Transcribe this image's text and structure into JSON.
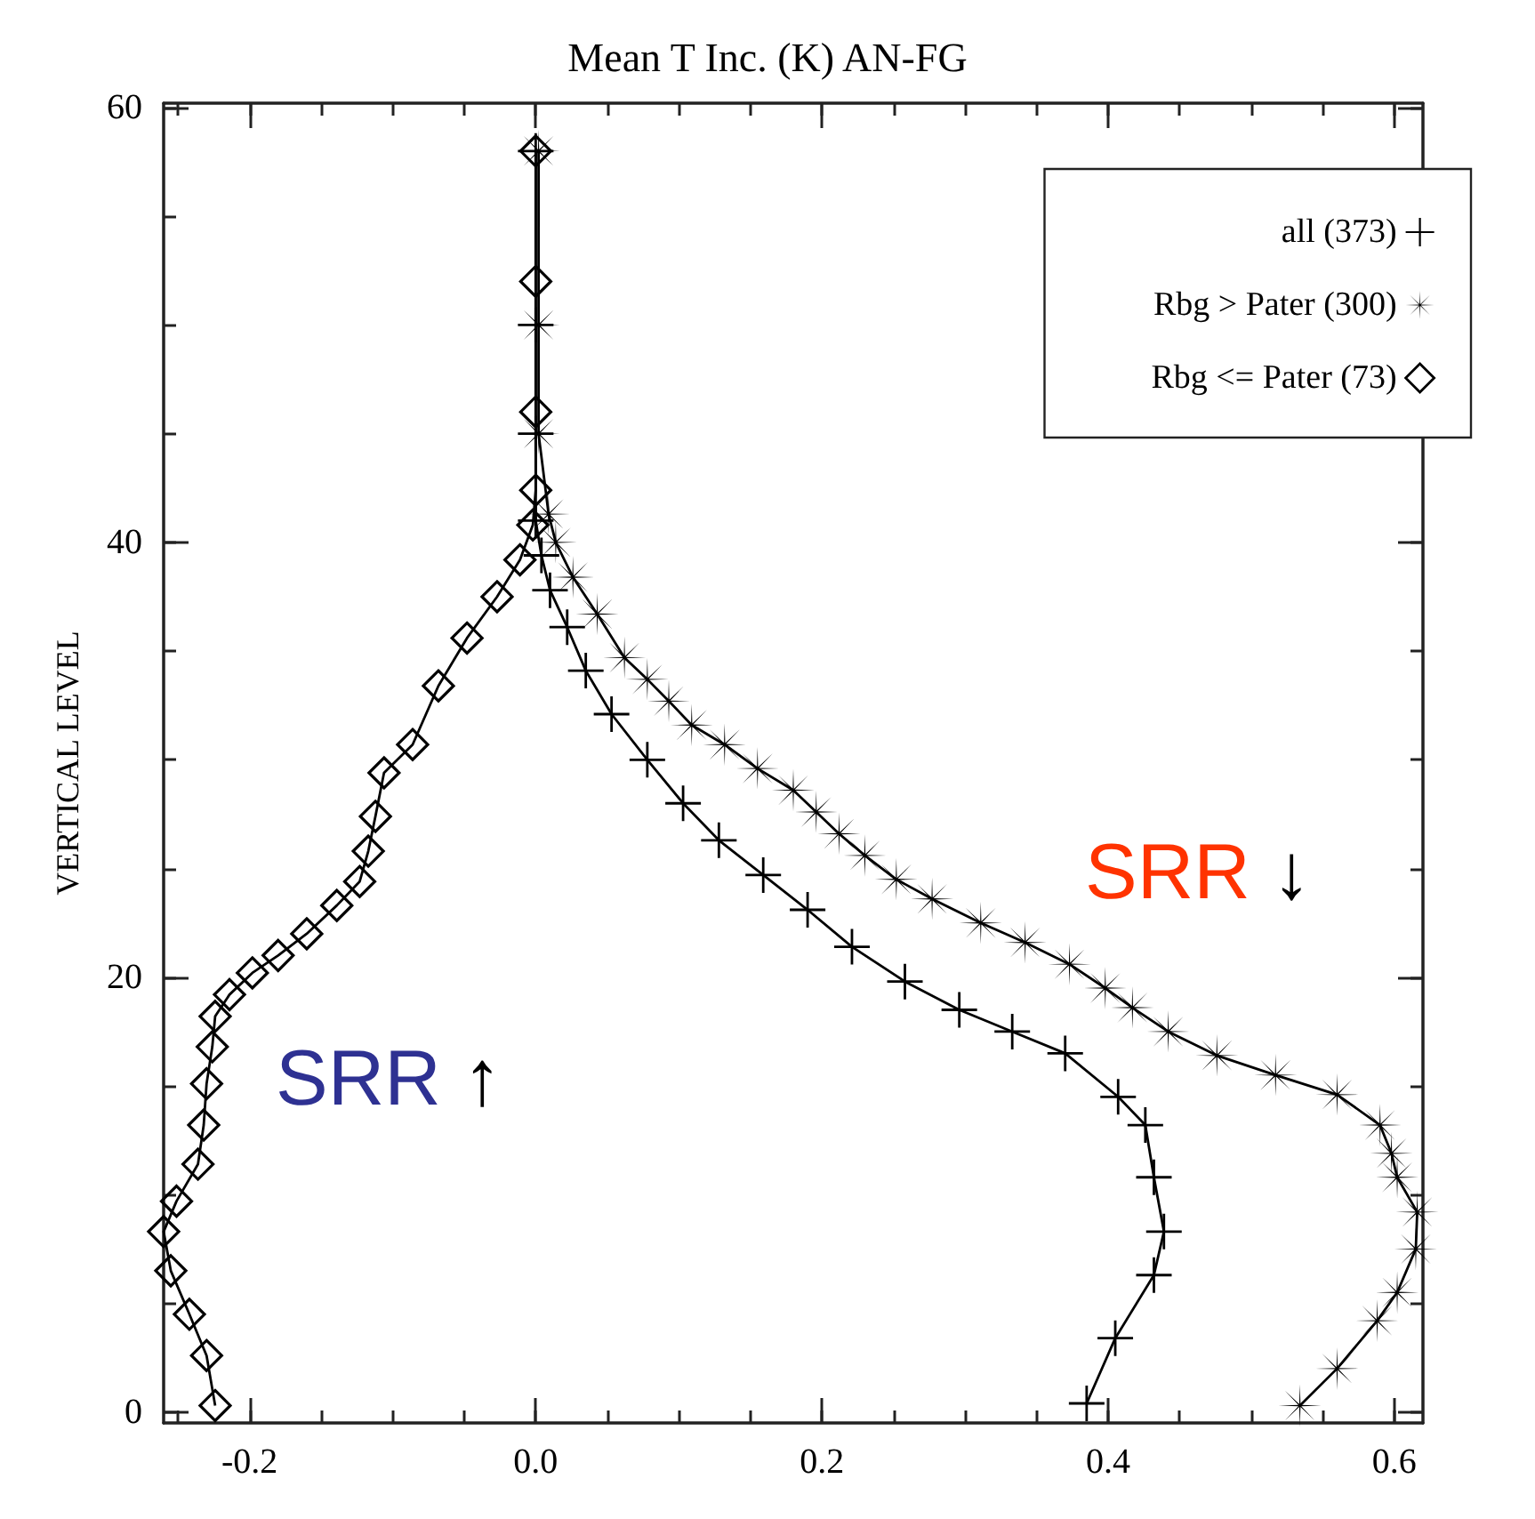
{
  "chart_data": {
    "type": "line",
    "title": "Mean T Inc. (K) AN-FG",
    "ylabel": "VERTICAL LEVEL",
    "xlim": [
      -0.26,
      0.62
    ],
    "xticks": [
      -0.2,
      {
        "value": 0,
        "label": "0.0"
      },
      0.2,
      0.4,
      0.6
    ],
    "ylim": [
      -0.5,
      60.2
    ],
    "yticks": [
      0,
      20,
      40,
      60
    ],
    "grid": false,
    "legend": "top right",
    "line_style": "solid",
    "annotations": [
      "SRR ↑",
      "SRR ↓"
    ],
    "series": [
      {
        "name": "all (373)",
        "color": "#000000",
        "marker": "cross",
        "x": [
          0.385,
          0.405,
          0.432,
          0.439,
          0.432,
          0.426,
          0.407,
          0.37,
          0.333,
          0.296,
          0.258,
          0.221,
          0.19,
          0.159,
          0.128,
          0.103,
          0.078,
          0.053,
          0.035,
          0.022,
          0.01,
          0.004,
          0.0,
          0.0,
          0.0,
          0.0
        ],
        "values": [
          0.4,
          3.4,
          6.3,
          8.3,
          10.8,
          13.2,
          14.5,
          16.5,
          17.5,
          18.5,
          19.8,
          21.4,
          23.1,
          24.7,
          26.3,
          28.0,
          30.0,
          32.1,
          34.1,
          36.1,
          37.8,
          39.4,
          41,
          45,
          50,
          58
        ]
      },
      {
        "name": "Rbg > Pater (300)",
        "color": "#000000",
        "marker": "star",
        "x": [
          0.534,
          0.56,
          0.588,
          0.602,
          0.615,
          0.616,
          0.602,
          0.598,
          0.59,
          0.56,
          0.517,
          0.476,
          0.442,
          0.417,
          0.398,
          0.373,
          0.342,
          0.311,
          0.277,
          0.252,
          0.23,
          0.212,
          0.196,
          0.18,
          0.155,
          0.132,
          0.109,
          0.093,
          0.078,
          0.062,
          0.043,
          0.026,
          0.014,
          0.009,
          0.002,
          0.002,
          0.002
        ],
        "values": [
          0.3,
          2.0,
          4.2,
          5.5,
          7.5,
          9.2,
          10.8,
          11.9,
          13.2,
          14.6,
          15.5,
          16.4,
          17.5,
          18.6,
          19.5,
          20.6,
          21.6,
          22.5,
          23.6,
          24.5,
          25.6,
          26.6,
          27.6,
          28.6,
          29.6,
          30.7,
          31.6,
          32.7,
          33.7,
          34.7,
          36.7,
          38.4,
          40.0,
          41.3,
          45,
          50,
          58
        ]
      },
      {
        "name": "Rbg <= Pater (73)",
        "color": "#000000",
        "marker": "diamond",
        "x": [
          -0.224,
          -0.23,
          -0.242,
          -0.255,
          -0.26,
          -0.251,
          -0.236,
          -0.232,
          -0.23,
          -0.226,
          -0.224,
          -0.214,
          -0.198,
          -0.18,
          -0.16,
          -0.139,
          -0.123,
          -0.117,
          -0.112,
          -0.106,
          -0.086,
          -0.068,
          -0.048,
          -0.027,
          -0.011,
          -0.002,
          0.0,
          0.0,
          0.0,
          0.0
        ],
        "values": [
          0.3,
          2.6,
          4.5,
          6.5,
          8.3,
          9.7,
          11.4,
          13.2,
          15.1,
          16.8,
          18.2,
          19.2,
          20.2,
          21.0,
          22.0,
          23.3,
          24.4,
          25.8,
          27.4,
          29.4,
          30.7,
          33.4,
          35.6,
          37.5,
          39.2,
          40.8,
          42.4,
          46,
          52,
          58
        ]
      }
    ]
  }
}
